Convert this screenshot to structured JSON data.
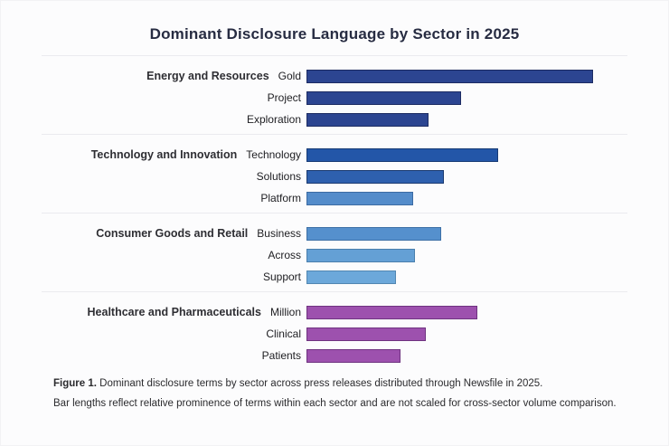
{
  "title": "Dominant Disclosure Language by Sector in 2025",
  "chart_data": {
    "type": "bar",
    "orientation": "horizontal",
    "title": "Dominant Disclosure Language by Sector in 2025",
    "xlabel": "",
    "ylabel": "",
    "unit": "relative prominence (bar length px; not scaled for cross-sector comparison)",
    "legend_position": "none",
    "grid": false,
    "groups": [
      {
        "sector": "Energy and Resources",
        "terms": [
          {
            "label": "Gold",
            "value": 315,
            "color": "#2c4591",
            "border": "#1d2c63"
          },
          {
            "label": "Project",
            "value": 169,
            "color": "#2c4591",
            "border": "#1d2c63"
          },
          {
            "label": "Exploration",
            "value": 133,
            "color": "#2c4591",
            "border": "#1d2c63"
          }
        ]
      },
      {
        "sector": "Technology and Innovation",
        "terms": [
          {
            "label": "Technology",
            "value": 210,
            "color": "#2356a8",
            "border": "#173a75"
          },
          {
            "label": "Solutions",
            "value": 150,
            "color": "#2e60ae",
            "border": "#1b3a70"
          },
          {
            "label": "Platform",
            "value": 116,
            "color": "#548cca",
            "border": "#3c6ba3"
          }
        ]
      },
      {
        "sector": "Consumer Goods and Retail",
        "terms": [
          {
            "label": "Business",
            "value": 147,
            "color": "#5590cd",
            "border": "#3e70a6"
          },
          {
            "label": "Across",
            "value": 118,
            "color": "#64a0d5",
            "border": "#4a7fad"
          },
          {
            "label": "Support",
            "value": 97,
            "color": "#6ca8da",
            "border": "#5287b2"
          }
        ]
      },
      {
        "sector": "Healthcare and Pharmaceuticals",
        "terms": [
          {
            "label": "Million",
            "value": 187,
            "color": "#9d51ae",
            "border": "#6f3380"
          },
          {
            "label": "Clinical",
            "value": 130,
            "color": "#9d51ae",
            "border": "#6f3380"
          },
          {
            "label": "Patients",
            "value": 102,
            "color": "#9d51ae",
            "border": "#6f3380"
          }
        ]
      }
    ]
  },
  "caption": {
    "figure_label": "Figure 1.",
    "line1_rest": " Dominant disclosure terms by sector across press releases distributed through Newsfile in 2025.",
    "line2": "Bar lengths reflect relative prominence of terms within each sector and are not scaled for cross-sector volume comparison."
  }
}
